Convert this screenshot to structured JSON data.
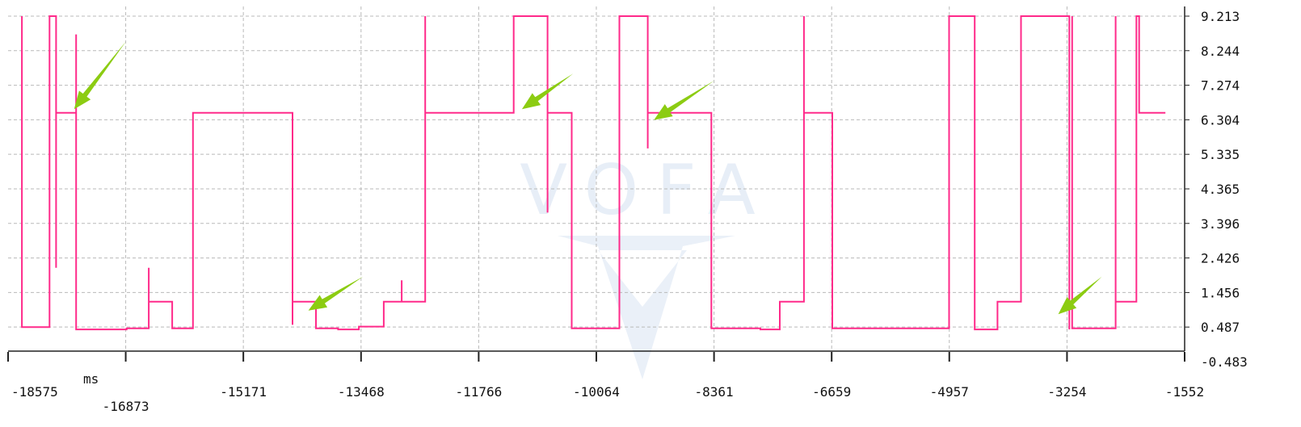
{
  "chart_data": {
    "type": "line",
    "x_unit": "ms",
    "xlim": [
      -18575,
      -1552
    ],
    "ylim": [
      -0.483,
      9.213
    ],
    "x_ticks": [
      "-18575",
      "-16873",
      "-15171",
      "-13468",
      "-11766",
      "-10064",
      "-8361",
      "-6659",
      "-4957",
      "-3254",
      "-1552"
    ],
    "y_ticks": [
      "9.213",
      "8.244",
      "7.274",
      "6.304",
      "5.335",
      "4.365",
      "3.396",
      "2.426",
      "1.456",
      "0.487",
      "-0.483"
    ],
    "grid": true,
    "watermark": "VOFA",
    "series": [
      {
        "color": "#ff2a8a",
        "points": [
          [
            -18375,
            9.213
          ],
          [
            -18375,
            0.487
          ],
          [
            -17975,
            0.487
          ],
          [
            -17975,
            9.213
          ],
          [
            -17880,
            9.213
          ],
          [
            -17880,
            2.15
          ],
          [
            -17880,
            6.5
          ],
          [
            -17590,
            6.5
          ],
          [
            -17590,
            8.7
          ],
          [
            -17590,
            0.42
          ],
          [
            -16860,
            0.42
          ],
          [
            -16860,
            0.45
          ],
          [
            -16540,
            0.45
          ],
          [
            -16540,
            1.2
          ],
          [
            -16540,
            2.15
          ],
          [
            -16540,
            1.2
          ],
          [
            -16200,
            1.2
          ],
          [
            -16200,
            0.45
          ],
          [
            -15900,
            0.45
          ],
          [
            -15900,
            6.5
          ],
          [
            -14460,
            6.5
          ],
          [
            -14460,
            0.55
          ],
          [
            -14460,
            1.2
          ],
          [
            -14120,
            1.2
          ],
          [
            -14120,
            0.45
          ],
          [
            -13800,
            0.45
          ],
          [
            -13800,
            0.42
          ],
          [
            -13500,
            0.42
          ],
          [
            -13500,
            0.5
          ],
          [
            -13140,
            0.5
          ],
          [
            -13140,
            1.2
          ],
          [
            -12880,
            1.2
          ],
          [
            -12880,
            1.8
          ],
          [
            -12880,
            1.2
          ],
          [
            -12540,
            1.2
          ],
          [
            -12540,
            9.213
          ],
          [
            -12540,
            6.5
          ],
          [
            -11260,
            6.5
          ],
          [
            -11260,
            9.213
          ],
          [
            -10770,
            9.213
          ],
          [
            -10770,
            3.7
          ],
          [
            -10770,
            6.5
          ],
          [
            -10420,
            6.5
          ],
          [
            -10420,
            0.45
          ],
          [
            -9730,
            0.45
          ],
          [
            -9730,
            9.213
          ],
          [
            -9320,
            9.213
          ],
          [
            -9320,
            5.5
          ],
          [
            -9320,
            6.5
          ],
          [
            -8400,
            6.5
          ],
          [
            -8400,
            0.45
          ],
          [
            -7690,
            0.45
          ],
          [
            -7690,
            0.42
          ],
          [
            -7410,
            0.42
          ],
          [
            -7410,
            1.2
          ],
          [
            -7410,
            0.8
          ],
          [
            -7410,
            1.2
          ],
          [
            -7060,
            1.2
          ],
          [
            -7060,
            9.213
          ],
          [
            -7060,
            6.5
          ],
          [
            -6650,
            6.5
          ],
          [
            -6650,
            0.45
          ],
          [
            -4960,
            0.45
          ],
          [
            -4960,
            9.213
          ],
          [
            -4590,
            9.213
          ],
          [
            -4590,
            0.42
          ],
          [
            -4260,
            0.42
          ],
          [
            -4260,
            1.2
          ],
          [
            -4260,
            0.8
          ],
          [
            -4260,
            1.2
          ],
          [
            -3920,
            1.2
          ],
          [
            -3920,
            9.213
          ],
          [
            -3220,
            9.213
          ],
          [
            -3220,
            0.42
          ],
          [
            -3220,
            1.2
          ],
          [
            -3180,
            1.2
          ],
          [
            -3180,
            9.213
          ],
          [
            -3180,
            0.45
          ],
          [
            -2550,
            0.45
          ],
          [
            -2550,
            9.213
          ],
          [
            -2550,
            1.2
          ],
          [
            -2250,
            1.2
          ],
          [
            -2250,
            9.213
          ],
          [
            -2210,
            9.213
          ],
          [
            -2210,
            6.5
          ],
          [
            -1830,
            6.5
          ]
        ]
      }
    ],
    "annotations": [
      {
        "type": "arrow",
        "color": "#8ccc12",
        "from": [
          -16870,
          8.5
        ],
        "to": [
          -17620,
          6.6
        ]
      },
      {
        "type": "arrow",
        "color": "#8ccc12",
        "from": [
          -13440,
          1.9
        ],
        "to": [
          -14230,
          0.95
        ]
      },
      {
        "type": "arrow",
        "color": "#8ccc12",
        "from": [
          -10400,
          7.6
        ],
        "to": [
          -11140,
          6.6
        ]
      },
      {
        "type": "arrow",
        "color": "#8ccc12",
        "from": [
          -8360,
          7.4
        ],
        "to": [
          -9230,
          6.3
        ]
      },
      {
        "type": "arrow",
        "color": "#8ccc12",
        "from": [
          -2750,
          1.9
        ],
        "to": [
          -3380,
          0.85
        ]
      }
    ]
  }
}
